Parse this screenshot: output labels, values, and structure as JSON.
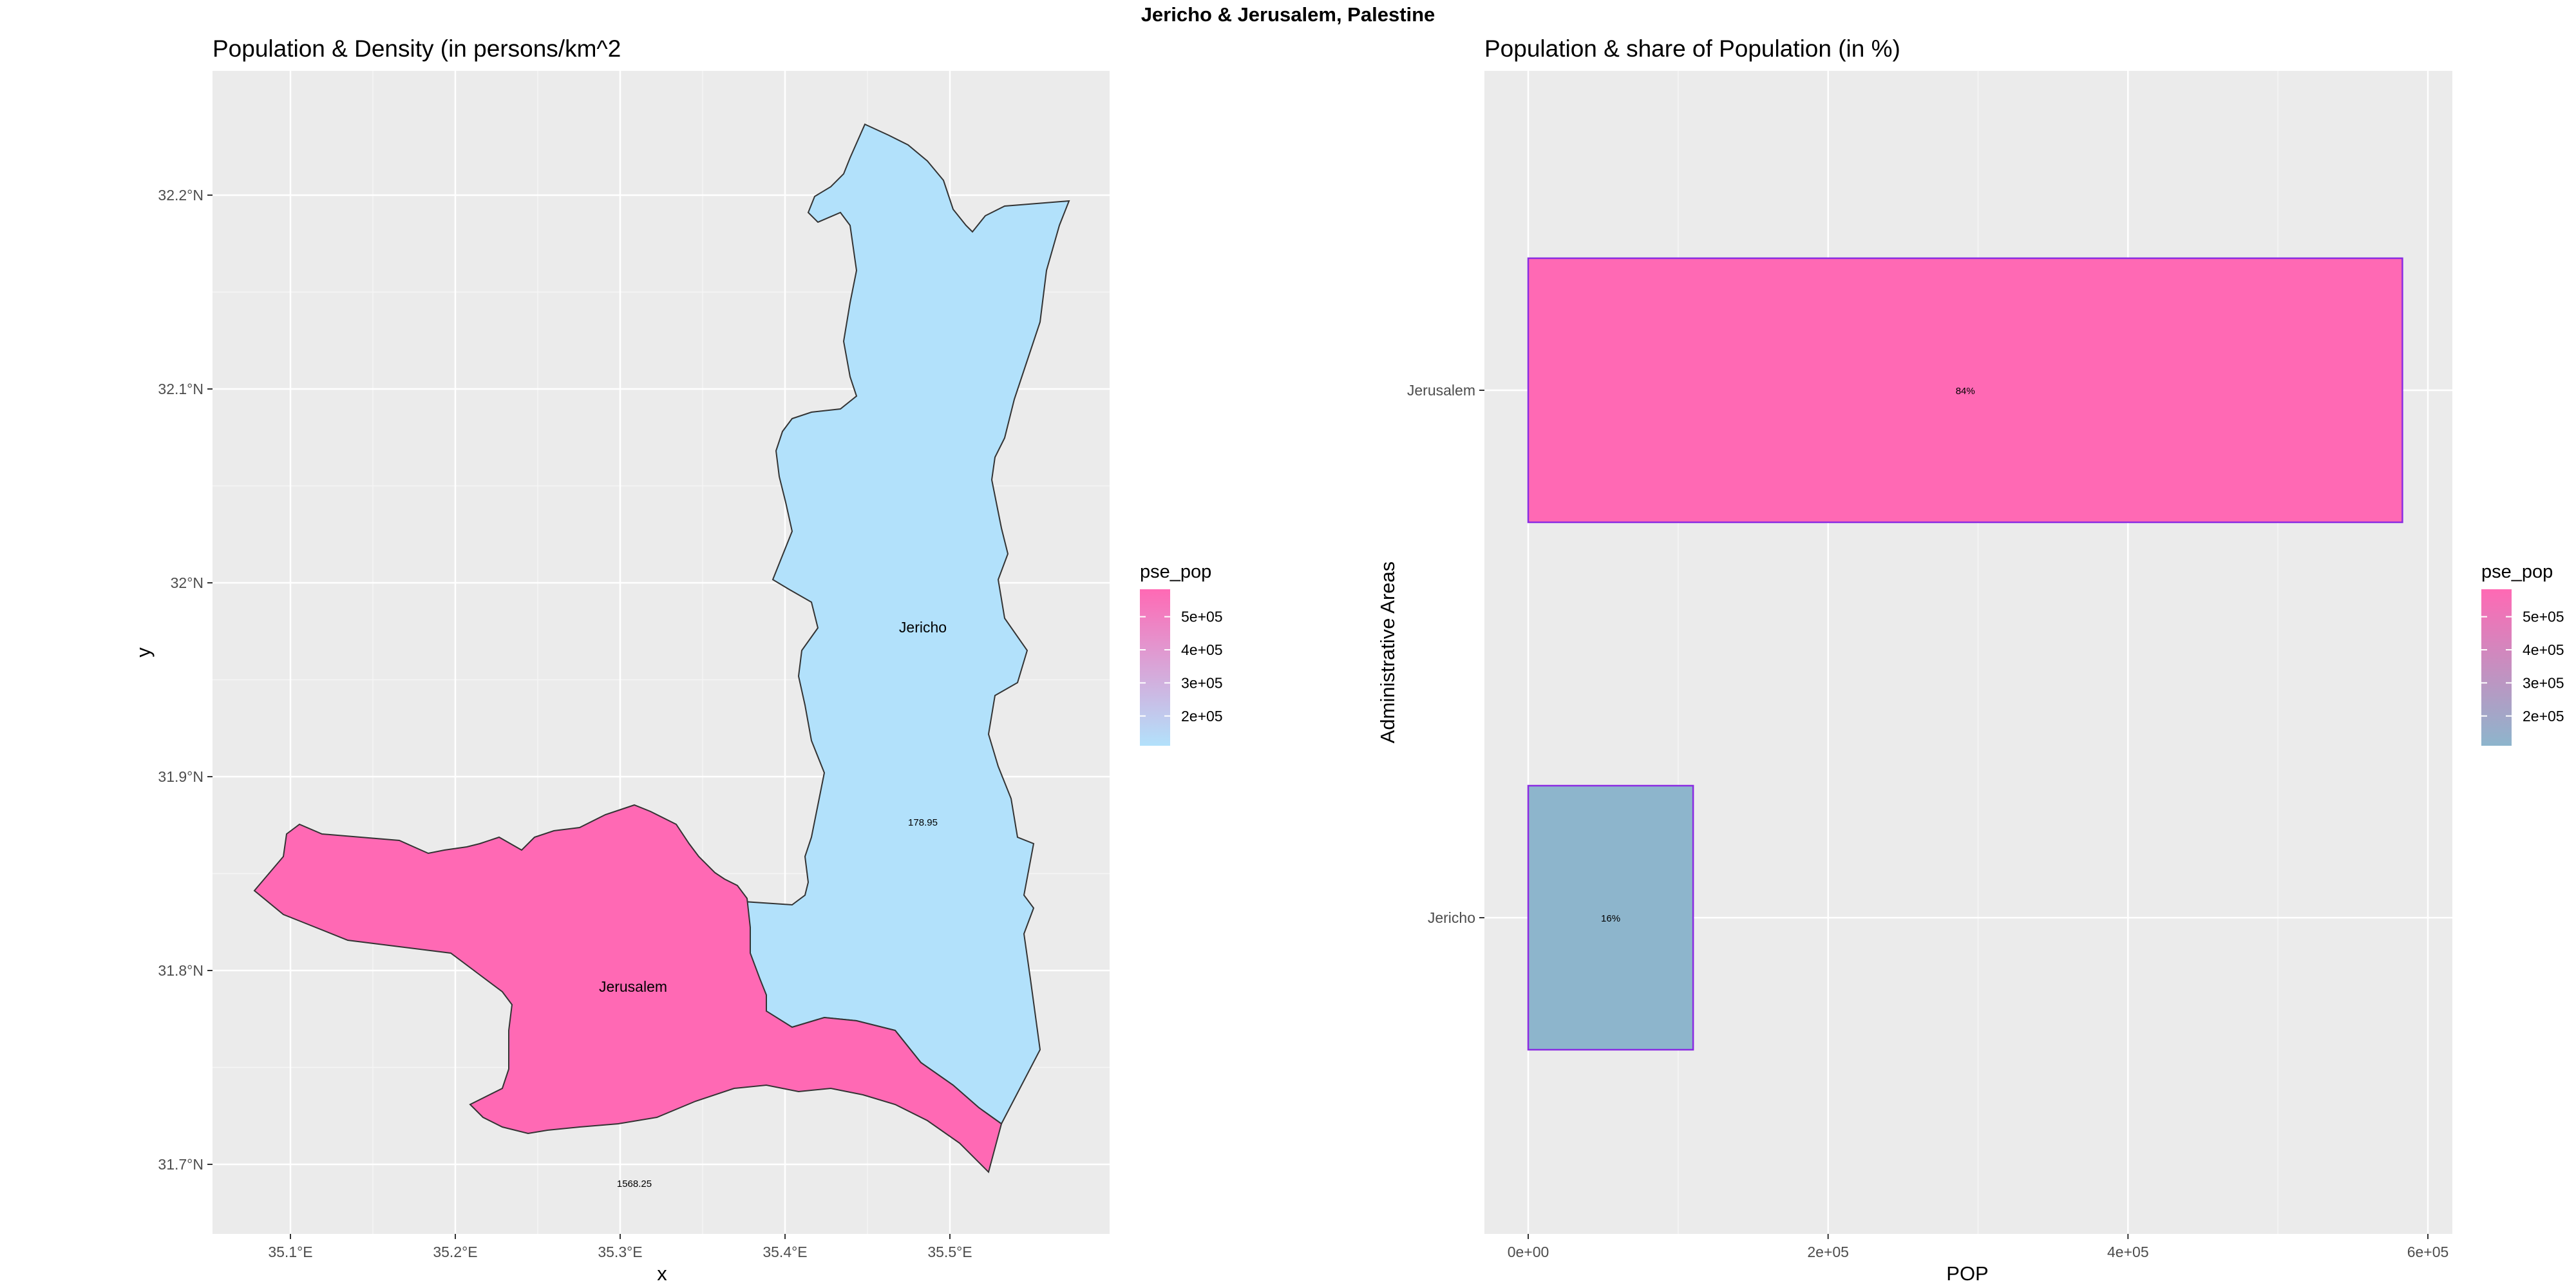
{
  "suptitle": "Jericho & Jerusalem, Palestine",
  "chart_data": [
    {
      "type": "choropleth",
      "title": "Population & Density (in persons/km^2",
      "xlabel": "x",
      "ylabel": "y",
      "x_ticks": [
        "35.1°E",
        "35.2°E",
        "35.3°E",
        "35.4°E",
        "35.5°E"
      ],
      "y_ticks": [
        "31.7°N",
        "31.8°N",
        "31.9°N",
        "32°N",
        "32.1°N",
        "32.2°N"
      ],
      "grid": true,
      "legend": {
        "title": "pse_pop",
        "placement": "right",
        "ticks": [
          "2e+05",
          "3e+05",
          "4e+05",
          "5e+05"
        ],
        "colors": [
          "#b2e1fb",
          "#ff69b4"
        ]
      },
      "regions": [
        {
          "name": "Jerusalem",
          "pop_share_pct": 84,
          "density": "1568.25",
          "color": "#ff69b4"
        },
        {
          "name": "Jericho",
          "pop_share_pct": 16,
          "density": "178.95",
          "color": "#b2e1fb"
        }
      ]
    },
    {
      "type": "bar",
      "orientation": "horizontal",
      "title": "Population & share of Population (in %)",
      "xlabel": "POP",
      "ylabel": "Administrative Areas",
      "categories": [
        "Jericho",
        "Jerusalem"
      ],
      "values": [
        110000,
        583000
      ],
      "bar_labels": [
        "16%",
        "84%"
      ],
      "bar_colors": [
        "#8db5cc",
        "#ff69b4"
      ],
      "bar_outline": "#8a2be2",
      "x_ticks": [
        "0e+00",
        "2e+05",
        "4e+05",
        "6e+05"
      ],
      "xlim": [
        0,
        610000
      ],
      "grid": true,
      "legend": {
        "title": "pse_pop",
        "placement": "right",
        "ticks": [
          "2e+05",
          "3e+05",
          "4e+05",
          "5e+05"
        ],
        "colors": [
          "#8db5cc",
          "#ff69b4"
        ]
      }
    }
  ]
}
